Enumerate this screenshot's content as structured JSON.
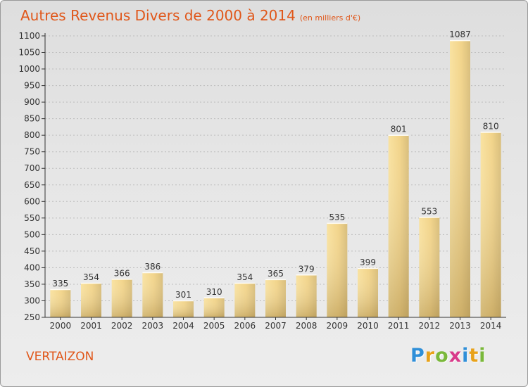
{
  "title": "Autres Revenus Divers de 2000 à 2014",
  "subtitle": "(en milliers d'€)",
  "commune": "VERTAIZON",
  "logo": {
    "letters": [
      "P",
      "r",
      "o",
      "x",
      "i",
      "t",
      "i"
    ],
    "colors": [
      "#2f8fd8",
      "#e8a21a",
      "#7ab83a",
      "#d83a8a",
      "#2f8fd8",
      "#e8a21a",
      "#7ab83a"
    ]
  },
  "colors": {
    "title": "#e0571a",
    "bar_light": "#f8dc90",
    "bar_dark": "#c9ae6c",
    "axis": "#333333",
    "grid": "#bbbbbb"
  },
  "chart_data": {
    "type": "bar",
    "title": "Autres Revenus Divers de 2000 à 2014",
    "subtitle": "(en milliers d'€)",
    "xlabel": "",
    "ylabel": "",
    "categories": [
      "2000",
      "2001",
      "2002",
      "2003",
      "2004",
      "2005",
      "2006",
      "2007",
      "2008",
      "2009",
      "2010",
      "2011",
      "2012",
      "2013",
      "2014"
    ],
    "values": [
      335,
      354,
      366,
      386,
      301,
      310,
      354,
      365,
      379,
      535,
      399,
      801,
      553,
      1087,
      810
    ],
    "ylim": [
      250,
      1100
    ],
    "yticks": [
      250,
      300,
      350,
      400,
      450,
      500,
      550,
      600,
      650,
      700,
      750,
      800,
      850,
      900,
      950,
      1000,
      1050,
      1100
    ],
    "grid": true
  }
}
